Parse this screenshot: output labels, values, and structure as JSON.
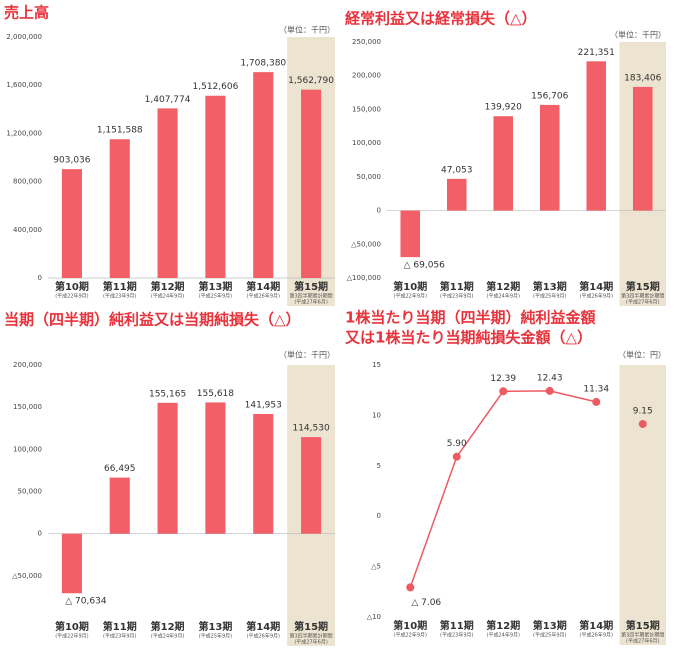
{
  "chart_data": [
    {
      "type": "bar",
      "title": "売上高",
      "unit": "（単位：千円）",
      "categories": [
        "第10期",
        "第11期",
        "第12期",
        "第13期",
        "第14期",
        "第15期"
      ],
      "category_notes": [
        [
          "(平成22年9月)"
        ],
        [
          "(平成23年9月)"
        ],
        [
          "(平成24年9月)"
        ],
        [
          "(平成25年9月)"
        ],
        [
          "(平成26年9月)"
        ],
        [
          "第3四半期累計期間",
          "(平成27年6月)"
        ]
      ],
      "values": [
        903036,
        1151588,
        1407774,
        1512606,
        1708380,
        1562790
      ],
      "value_labels": [
        "903,036",
        "1,151,588",
        "1,407,774",
        "1,512,606",
        "1,708,380",
        "1,562,790"
      ],
      "color": "#f25f67",
      "highlight": 5,
      "highlight_color": "#ece4d0",
      "ylim": [
        0,
        2000000
      ],
      "yticks": [
        0,
        {
          "value": 400000,
          "label": "400,000"
        },
        {
          "value": 800000,
          "label": "800,000"
        },
        {
          "value": 1200000,
          "label": "1,200,000"
        },
        {
          "value": 1600000,
          "label": "1,600,000"
        },
        {
          "value": 2000000,
          "label": "2,000,000"
        }
      ],
      "grid": false
    },
    {
      "type": "bar",
      "title": "経常利益又は経常損失（△）",
      "unit": "（単位：千円）",
      "categories": [
        "第10期",
        "第11期",
        "第12期",
        "第13期",
        "第14期",
        "第15期"
      ],
      "category_notes": [
        [
          "(平成22年9月)"
        ],
        [
          "(平成23年9月)"
        ],
        [
          "(平成24年9月)"
        ],
        [
          "(平成25年9月)"
        ],
        [
          "(平成26年9月)"
        ],
        [
          "第3四半期累計期間",
          "(平成27年6月)"
        ]
      ],
      "values": [
        -69056,
        47053,
        139920,
        156706,
        221351,
        183406
      ],
      "value_labels": [
        "△ 69,056",
        "47,053",
        "139,920",
        "156,706",
        "221,351",
        "183,406"
      ],
      "color": "#f25f67",
      "highlight": 5,
      "highlight_color": "#ece4d0",
      "ylim": [
        -100000,
        250000
      ],
      "yticks": [
        {
          "value": -100000,
          "label": "△100,000"
        },
        {
          "value": -50000,
          "label": "△50,000"
        },
        0,
        {
          "value": 50000,
          "label": "50,000"
        },
        {
          "value": 100000,
          "label": "100,000"
        },
        {
          "value": 150000,
          "label": "150,000"
        },
        {
          "value": 200000,
          "label": "200,000"
        },
        {
          "value": 250000,
          "label": "250,000"
        }
      ],
      "grid": false
    },
    {
      "type": "bar",
      "title": "当期（四半期）純利益又は当期純損失（△）",
      "unit": "（単位：千円）",
      "categories": [
        "第10期",
        "第11期",
        "第12期",
        "第13期",
        "第14期",
        "第15期"
      ],
      "category_notes": [
        [
          "(平成22年9月)"
        ],
        [
          "(平成23年9月)"
        ],
        [
          "(平成24年9月)"
        ],
        [
          "(平成25年9月)"
        ],
        [
          "(平成26年9月)"
        ],
        [
          "第3四半期累計期間",
          "(平成27年6月)"
        ]
      ],
      "values": [
        -70634,
        66495,
        155165,
        155618,
        141953,
        114530
      ],
      "value_labels": [
        "△ 70,634",
        "66,495",
        "155,165",
        "155,618",
        "141,953",
        "114,530"
      ],
      "color": "#f25f67",
      "highlight": 5,
      "highlight_color": "#ece4d0",
      "ylim": [
        -100000,
        200000
      ],
      "yticks": [
        {
          "value": -50000,
          "label": "△50,000"
        },
        0,
        {
          "value": 50000,
          "label": "50,000"
        },
        {
          "value": 100000,
          "label": "100,000"
        },
        {
          "value": 150000,
          "label": "150,000"
        },
        {
          "value": 200000,
          "label": "200,000"
        }
      ],
      "grid": false
    },
    {
      "type": "line",
      "title": "1株当たり当期（四半期）純利益金額",
      "subtitle": "又は1株当たり当期純損失金額（△）",
      "unit": "（単位：円）",
      "categories": [
        "第10期",
        "第11期",
        "第12期",
        "第13期",
        "第14期",
        "第15期"
      ],
      "category_notes": [
        [
          "(平成22年9月)"
        ],
        [
          "(平成23年9月)"
        ],
        [
          "(平成24年9月)"
        ],
        [
          "(平成25年9月)"
        ],
        [
          "(平成26年9月)"
        ],
        [
          "第3四半期累計期間",
          "(平成27年6月)"
        ]
      ],
      "series": [
        {
          "color": "#ee5a62",
          "values": [
            -7.06,
            5.9,
            12.39,
            12.43,
            11.34,
            null
          ],
          "value_labels": [
            "△ 7.06",
            "5.90",
            "12.39",
            "12.43",
            "11.34",
            null
          ]
        },
        {
          "color": "#ee5a62",
          "values": [
            null,
            null,
            null,
            null,
            null,
            9.15
          ],
          "value_labels": [
            null,
            null,
            null,
            null,
            null,
            "9.15"
          ]
        }
      ],
      "highlight": 5,
      "highlight_color": "#ece4d0",
      "ylim": [
        -10,
        15
      ],
      "yticks": [
        {
          "value": -10,
          "label": "△10"
        },
        {
          "value": -5,
          "label": "△5"
        },
        0,
        5,
        10,
        15
      ],
      "grid": false
    }
  ]
}
